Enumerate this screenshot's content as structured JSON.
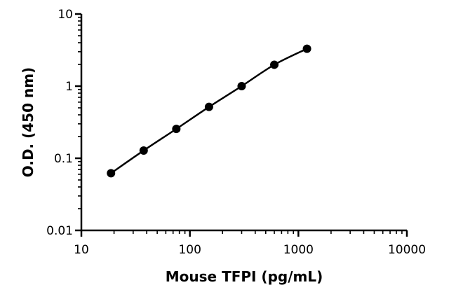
{
  "chart_data": {
    "type": "scatter",
    "title": "",
    "xlabel": "Mouse TFPI (pg/mL)",
    "ylabel": "O.D. (450 nm)",
    "x_scale": "log",
    "y_scale": "log",
    "xlim": [
      10,
      10000
    ],
    "ylim": [
      0.01,
      10
    ],
    "x_ticks": [
      10,
      100,
      1000,
      10000
    ],
    "x_tick_labels": [
      "10",
      "100",
      "1000",
      "10000"
    ],
    "y_ticks": [
      0.01,
      0.1,
      1,
      10
    ],
    "y_tick_labels": [
      "0.01",
      "0.1",
      "1",
      "10"
    ],
    "grid": false,
    "legend": "none",
    "fit_line": true,
    "marker_color": "#000000",
    "series": [
      {
        "x": [
          18.75,
          37.5,
          75,
          150,
          300,
          600,
          1200
        ],
        "y": [
          0.062,
          0.128,
          0.255,
          0.515,
          1.0,
          1.98,
          3.3
        ]
      }
    ]
  }
}
